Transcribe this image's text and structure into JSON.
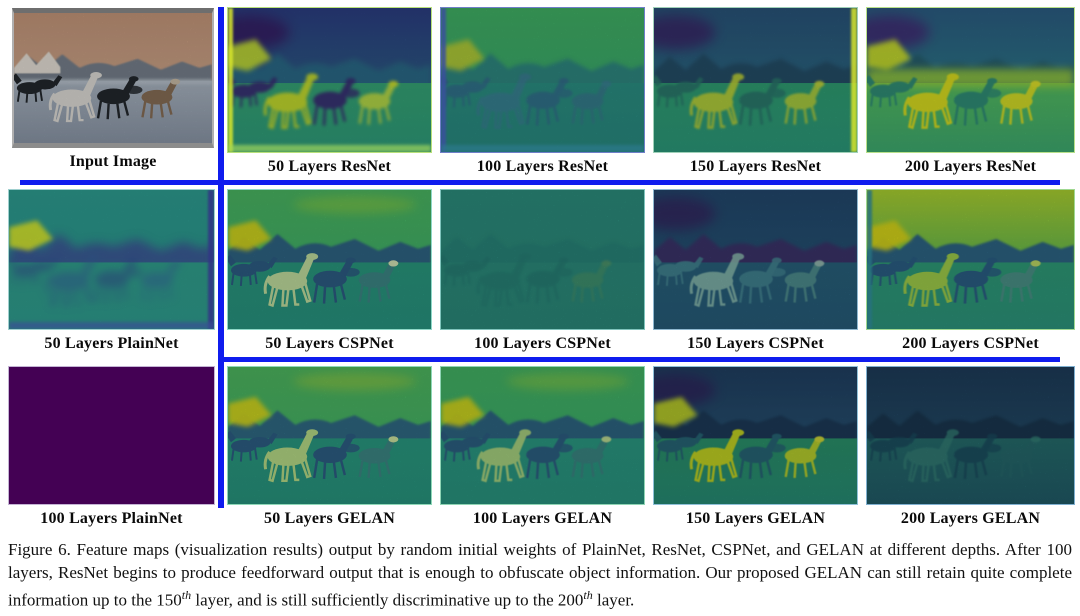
{
  "colors": {
    "divider_blue": "#0f1cee",
    "caption_text": "#111111",
    "label_text": "#0a0a0a",
    "background": "#ffffff"
  },
  "caption": {
    "prefix": "Figure 6.",
    "p1": "  Feature maps (visualization results) output by random initial weights of PlainNet, ResNet, CSPNet, and GELAN at different depths.  After 100 layers, ResNet begins to produce feedforward output that is enough to obfuscate object information.  Our proposed GELAN can still retain quite complete information up to the 150",
    "sup1": "th",
    "p2": " layer, and is still sufficiently discriminative up to the 200",
    "sup2": "th",
    "p3": " layer."
  },
  "panels": [
    {
      "label": "Input Image",
      "type": "photo",
      "palette": {
        "sky": "#c99a7d",
        "sky2": "#d3aa8e",
        "snow": "#ece6dc",
        "ridge": "#79838f",
        "ground": "#aeb9c6",
        "ground2": "#8d99aa",
        "horizon": "#c2ccd6",
        "horseLight": "#e4e2dc",
        "horseDark": "#24282e",
        "horseMid": "#8a7158",
        "head": "#cfc0aa",
        "grain": 0.22,
        "horseBlur": 0.3
      }
    },
    {
      "label": "50 Layers ResNet",
      "type": "map",
      "palette": {
        "sky": "#2d3f85",
        "sky2": "#2e5f88",
        "ridge": "#2b6c8a",
        "ridgeBlur": 3,
        "ground": "#37a878",
        "ground2": "#2fa17e",
        "horseLight": "#cfe32c",
        "horseDark": "#3a2f77",
        "horseMid": "#bfe048",
        "head": "#d8e62c",
        "horseOpacity": 0.95,
        "horseBlur": 1.5,
        "accents": {
          "purple": "#371d66",
          "leftYellow": "#c6e036",
          "leftStrip": "#d8e62c",
          "bottomStrip": "#9fd65c"
        },
        "grain": 0.22,
        "border": "#b8e07a"
      }
    },
    {
      "label": "100 Layers ResNet",
      "type": "map",
      "palette": {
        "sky": "#46be6c",
        "sky2": "#3fb875",
        "ridge": "#31918a",
        "ridgeBlur": 2,
        "ground": "#2e9a8c",
        "ground2": "#2b948a",
        "horseLight": "#4a7fae",
        "horseDark": "#3b5f9e",
        "horseMid": "#44759f",
        "head": "#4a7fae",
        "horseOpacity": 0.5,
        "horseBlur": 1,
        "accents": {
          "leftYellow": "#c2dc3a",
          "leftStrip": "#3b4f9f",
          "bottomStrip": "#2d7a8e"
        },
        "grain": 0.26,
        "border": "#6f7fc9"
      }
    },
    {
      "label": "150 Layers ResNet",
      "type": "map",
      "palette": {
        "sky": "#2c5a83",
        "sky2": "#2e6f8c",
        "ridge": "#27536f",
        "ridgeBlur": 2,
        "ground": "#33a97a",
        "ground2": "#2fa584",
        "horseLight": "#cde23a",
        "horseDark": "#2d7f74",
        "horseMid": "#c2e040",
        "head": "#d8e63c",
        "horseOpacity": 0.9,
        "horseBlur": 1,
        "accents": {
          "purple": "#3d2a70",
          "rightStrip": "#d8e62c"
        },
        "grain": 0.26,
        "border": "#9fd0b8"
      }
    },
    {
      "label": "200 Layers ResNet",
      "type": "map",
      "palette": {
        "sky": "#2d5f86",
        "sky2": "#2d7b8c",
        "ridge": "#27606f",
        "ridgeBlur": 2.5,
        "ground": "#56c163",
        "ground2": "#3fae72",
        "horseLight": "#e4e41e",
        "horseDark": "#2f8f7a",
        "horseMid": "#dfe426",
        "head": "#e8e82a",
        "horseOpacity": 0.95,
        "horseBlur": 0.8,
        "accents": {
          "purple": "#432c78",
          "leftYellow": "#cfe32c",
          "midBand": "#a4d93c"
        },
        "grain": 0.22,
        "border": "#b8e08a"
      }
    },
    {
      "label": "50 Layers PlainNet",
      "type": "map",
      "palette": {
        "sky": "#2d9a8e",
        "sky2": "#2a958c",
        "ridge": "#3a5a93",
        "ridgeBlur": 5,
        "ground": "#2f9c8a",
        "ground2": "#2e9a8c",
        "horseLight": "#35639a",
        "horseDark": "#324f92",
        "horseMid": "#356a9c",
        "head": "#35639a",
        "horseOpacity": 0.55,
        "horseBlur": 4,
        "accents": {
          "leftYellow": "#d0e22e",
          "rightStrip": "#333386",
          "bottomStrip": "#3a4f96"
        },
        "grain": 0.18,
        "border": "#9fd0cf"
      }
    },
    {
      "label": "50 Layers CSPNet",
      "type": "map",
      "palette": {
        "sky": "#4fc268",
        "sky2": "#45bd70",
        "ridge": "#316a8c",
        "ridgeBlur": 1,
        "ground": "#2ba186",
        "ground2": "#2a9d88",
        "horseLight": "#cdeba8",
        "horseDark": "#2f628c",
        "horseMid": "#3f8f8e",
        "head": "#e0f2c0",
        "horseOpacity": 1,
        "horseBlur": 0.4,
        "accents": {
          "cloud": "#7ed14f",
          "leftYellow": "#e3e31d"
        },
        "grain": 0.25,
        "border": "#8fd8c8"
      }
    },
    {
      "label": "100 Layers CSPNet",
      "type": "map",
      "palette": {
        "sky": "#32a08d",
        "sky2": "#319e8c",
        "ridge": "#2e968a",
        "ridgeBlur": 2,
        "ground": "#319e8c",
        "ground2": "#309c8b",
        "horseLight": "#2b8f84",
        "horseDark": "#2a8a82",
        "horseMid": "#56a875",
        "head": "#6fb06f",
        "horseOpacity": 0.6,
        "horseBlur": 1,
        "grain": 0.3,
        "border": "#7fc4bc"
      }
    },
    {
      "label": "150 Layers CSPNet",
      "type": "map",
      "palette": {
        "sky": "#27517c",
        "sky2": "#2a5f84",
        "ridge": "#433a78",
        "ridgeBlur": 2,
        "ground": "#2d6e8c",
        "ground2": "#2c688a",
        "horseLight": "#a0d8c8",
        "horseDark": "#4f9aa8",
        "horseMid": "#5fa8a4",
        "head": "#b8e0d0",
        "horseOpacity": 0.85,
        "horseBlur": 0.6,
        "accents": {
          "purple": "#3a2d6e"
        },
        "grain": 0.3,
        "border": "#8fb8d0"
      }
    },
    {
      "label": "200 Layers CSPNet",
      "type": "map",
      "palette": {
        "sky": "#b5dd33",
        "sky2": "#62c457",
        "ridge": "#2f6a8c",
        "ridgeBlur": 1,
        "ground": "#31a47e",
        "ground2": "#2f9e84",
        "horseLight": "#a8d84e",
        "horseDark": "#2d648c",
        "horseMid": "#4f9a8f",
        "head": "#c8e46a",
        "horseOpacity": 1,
        "horseBlur": 0.4,
        "accents": {
          "leftYellow": "#e8e419",
          "leftStrip": "#27717f"
        },
        "grain": 0.25,
        "border": "#9fd890"
      }
    },
    {
      "label": "100 Layers PlainNet",
      "type": "solid",
      "palette": {
        "color": "#440154",
        "border": "#c4b4d4"
      }
    },
    {
      "label": "50 Layers GELAN",
      "type": "map",
      "palette": {
        "sky": "#53c365",
        "sky2": "#49bf6e",
        "ridge": "#32708c",
        "ridgeBlur": 1,
        "ground": "#2ba288",
        "ground2": "#2a9e86",
        "horseLight": "#c2e88f",
        "horseDark": "#30648c",
        "horseMid": "#3f8f8c",
        "head": "#d8f0a8",
        "horseOpacity": 1,
        "horseBlur": 0.4,
        "accents": {
          "cloud": "#8ad14d",
          "leftYellow": "#e2e41f"
        },
        "grain": 0.25,
        "border": "#8fd8b8"
      }
    },
    {
      "label": "100 Layers GELAN",
      "type": "map",
      "palette": {
        "sky": "#48be6a",
        "sky2": "#40ba72",
        "ridge": "#2f6b8a",
        "ridgeBlur": 1,
        "ground": "#2da189",
        "ground2": "#2c9d87",
        "horseLight": "#b8e287",
        "horseDark": "#2f628a",
        "horseMid": "#3e8c8a",
        "head": "#cfeb9a",
        "horseOpacity": 0.95,
        "horseBlur": 0.6,
        "accents": {
          "cloud": "#7ccf52",
          "leftYellow": "#dfe31e"
        },
        "grain": 0.25,
        "border": "#8fd4b4"
      }
    },
    {
      "label": "150 Layers GELAN",
      "type": "map",
      "palette": {
        "sky": "#23456b",
        "sky2": "#2a5a7d",
        "ridge": "#1f3f60",
        "ridgeBlur": 1.5,
        "ground": "#2e9f74",
        "ground2": "#2b9a80",
        "horseLight": "#d4e626",
        "horseDark": "#2a6f80",
        "horseMid": "#c8e232",
        "head": "#e2ea3c",
        "horseOpacity": 1,
        "horseBlur": 0.5,
        "accents": {
          "purple": "#322a66",
          "leftYellow": "#cfe42c"
        },
        "grain": 0.28,
        "border": "#8fc0d8"
      }
    },
    {
      "label": "200 Layers GELAN",
      "type": "map",
      "palette": {
        "sky": "#24496d",
        "sky2": "#2a5a7c",
        "ridge": "#1f4260",
        "ridgeBlur": 1.5,
        "ground": "#2d8383",
        "ground2": "#286f7e",
        "horseLight": "#3f9a8f",
        "horseDark": "#1f5a72",
        "horseMid": "#2f7f84",
        "head": "#3f9a8f",
        "horseOpacity": 0.8,
        "horseBlur": 0.7,
        "grain": 0.35,
        "border": "#7fb0d0"
      }
    }
  ]
}
